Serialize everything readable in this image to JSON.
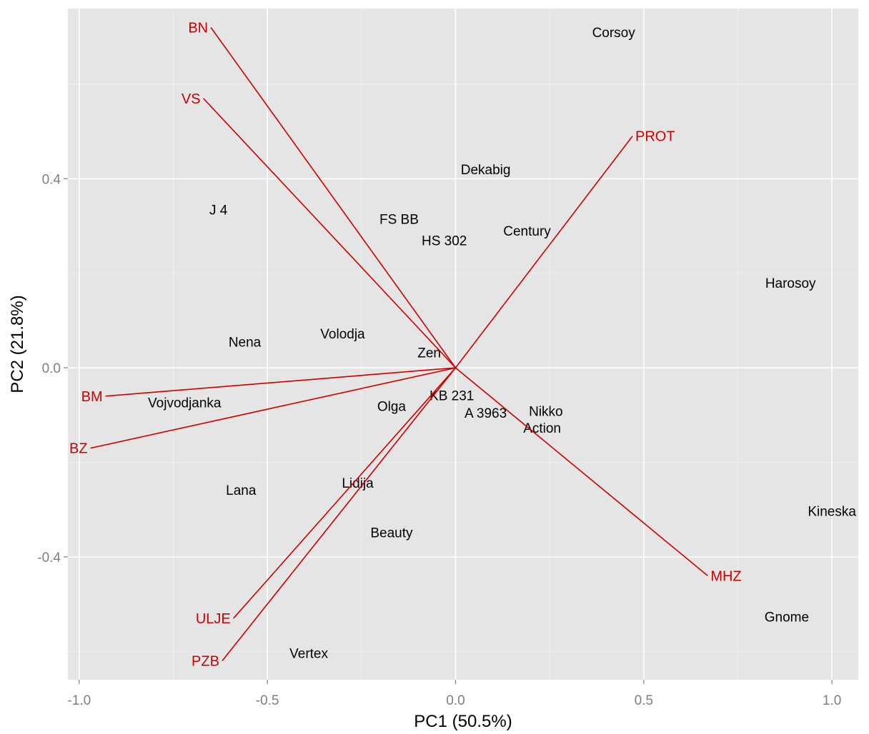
{
  "chart_data": {
    "type": "scatter",
    "subtype": "pca-biplot",
    "title": "",
    "xlabel": "PC1 (50.5%)",
    "ylabel": "PC2 (21.8%)",
    "xlim": [
      -1.03,
      1.07
    ],
    "ylim": [
      -0.66,
      0.76
    ],
    "x_ticks": [
      -1.0,
      -0.5,
      0.0,
      0.5,
      1.0
    ],
    "x_tick_labels": [
      "-1.0",
      "-0.5",
      "0.0",
      "0.5",
      "1.0"
    ],
    "y_ticks": [
      -0.4,
      0.0,
      0.4
    ],
    "y_tick_labels": [
      "-0.4",
      "0.0",
      "0.4"
    ],
    "grid": true,
    "colors": {
      "panel": "#e5e5e5",
      "grid": "#ffffff",
      "variables": "#cc0000",
      "observations": "#000000"
    },
    "observations": [
      {
        "label": "Corsoy",
        "x": 0.42,
        "y": 0.71
      },
      {
        "label": "Dekabig",
        "x": 0.08,
        "y": 0.42
      },
      {
        "label": "J 4",
        "x": -0.63,
        "y": 0.335
      },
      {
        "label": "FS BB",
        "x": -0.15,
        "y": 0.315
      },
      {
        "label": "HS 302",
        "x": -0.03,
        "y": 0.27
      },
      {
        "label": "Century",
        "x": 0.19,
        "y": 0.29
      },
      {
        "label": "Harosoy",
        "x": 0.89,
        "y": 0.18
      },
      {
        "label": "Nena",
        "x": -0.56,
        "y": 0.055
      },
      {
        "label": "Volodja",
        "x": -0.3,
        "y": 0.073
      },
      {
        "label": "Zen",
        "x": -0.07,
        "y": 0.033
      },
      {
        "label": "Vojvodjanka",
        "x": -0.72,
        "y": -0.073
      },
      {
        "label": "Olga",
        "x": -0.17,
        "y": -0.081
      },
      {
        "label": "KB 231",
        "x": -0.01,
        "y": -0.058
      },
      {
        "label": "A 3963",
        "x": 0.08,
        "y": -0.095
      },
      {
        "label": "Nikko",
        "x": 0.24,
        "y": -0.091
      },
      {
        "label": "Action",
        "x": 0.23,
        "y": -0.127
      },
      {
        "label": "Lana",
        "x": -0.57,
        "y": -0.258
      },
      {
        "label": "Lidija",
        "x": -0.26,
        "y": -0.243
      },
      {
        "label": "Kineska",
        "x": 1.0,
        "y": -0.303
      },
      {
        "label": "Beauty",
        "x": -0.17,
        "y": -0.348
      },
      {
        "label": "Gnome",
        "x": 0.88,
        "y": -0.526
      },
      {
        "label": "Vertex",
        "x": -0.39,
        "y": -0.603
      }
    ],
    "variables": [
      {
        "label": "BN",
        "x": -0.65,
        "y": 0.72
      },
      {
        "label": "VS",
        "x": -0.67,
        "y": 0.57
      },
      {
        "label": "PROT",
        "x": 0.47,
        "y": 0.49
      },
      {
        "label": "BM",
        "x": -0.93,
        "y": -0.06
      },
      {
        "label": "BZ",
        "x": -0.97,
        "y": -0.17
      },
      {
        "label": "MHZ",
        "x": 0.67,
        "y": -0.44
      },
      {
        "label": "ULJE",
        "x": -0.59,
        "y": -0.53
      },
      {
        "label": "PZB",
        "x": -0.62,
        "y": -0.62
      }
    ]
  }
}
